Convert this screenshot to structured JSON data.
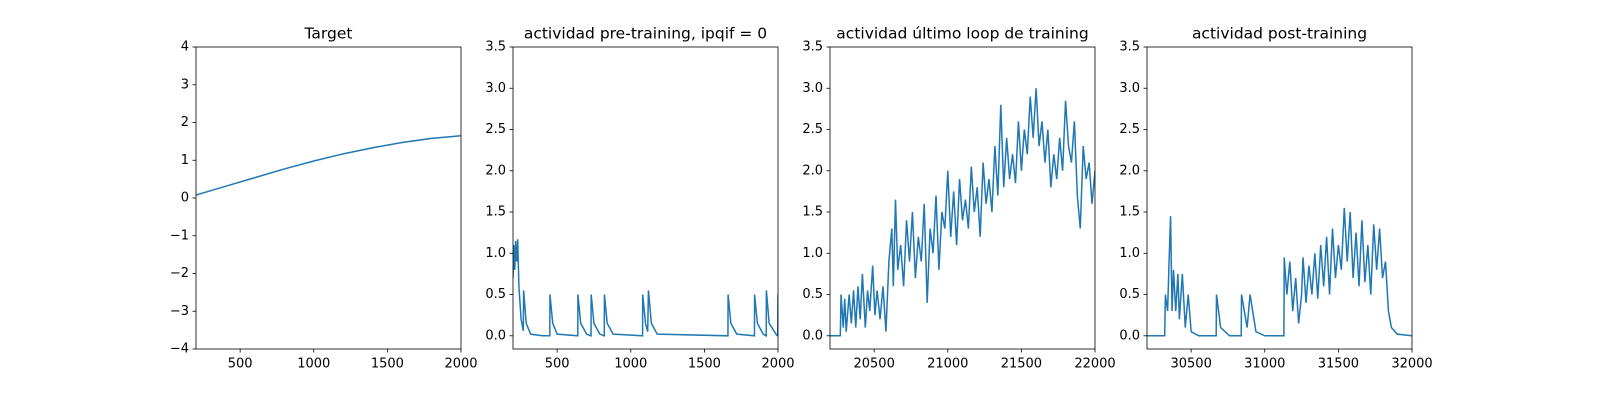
{
  "chart_data": [
    {
      "type": "line",
      "title": "Target",
      "color": "#1f77b4",
      "x": [
        200,
        400,
        600,
        800,
        1000,
        1200,
        1400,
        1600,
        1800,
        2000
      ],
      "values": [
        0.08,
        0.31,
        0.54,
        0.77,
        0.98,
        1.17,
        1.33,
        1.47,
        1.58,
        1.65
      ],
      "xlim": [
        200,
        2000
      ],
      "ylim": [
        -4,
        4
      ],
      "xticks": [
        500,
        1000,
        1500,
        2000
      ],
      "yticks": [
        {
          "value": -4,
          "label": "−4"
        },
        {
          "value": -3,
          "label": "−3"
        },
        {
          "value": -2,
          "label": "−2"
        },
        {
          "value": -1,
          "label": "−1"
        },
        0,
        1,
        2,
        3,
        4
      ]
    },
    {
      "type": "line",
      "title": "actividad pre-training, ipqif = 0",
      "color": "#1f77b4",
      "x": [
        200,
        205,
        212,
        218,
        225,
        232,
        240,
        255,
        270,
        272,
        290,
        320,
        400,
        450,
        451,
        470,
        500,
        640,
        641,
        660,
        700,
        730,
        731,
        750,
        790,
        820,
        821,
        840,
        880,
        1080,
        1081,
        1100,
        1115,
        1120,
        1140,
        1180,
        1660,
        1661,
        1680,
        1720,
        1840,
        1841,
        1860,
        1900,
        1920,
        1921,
        1940,
        1990,
        1998,
        2000
      ],
      "values": [
        0.7,
        1.1,
        0.8,
        1.15,
        0.9,
        1.17,
        0.6,
        0.2,
        0.06,
        0.55,
        0.15,
        0.02,
        0,
        0,
        0.5,
        0.15,
        0.02,
        0,
        0.5,
        0.15,
        0.02,
        0,
        0.5,
        0.15,
        0.02,
        0,
        0.5,
        0.15,
        0.02,
        0,
        0.5,
        0.15,
        0.05,
        0.55,
        0.15,
        0.02,
        0,
        0.5,
        0.15,
        0.02,
        0,
        0.5,
        0.15,
        0.02,
        0,
        0.55,
        0.15,
        0.01,
        0,
        0.5
      ],
      "xlim": [
        200,
        2000
      ],
      "ylim": [
        -0.16,
        3.5
      ],
      "xticks": [
        500,
        1000,
        1500,
        2000
      ],
      "yticks": [
        {
          "value": 0,
          "label": "0.0"
        },
        0.5,
        {
          "value": 1,
          "label": "1.0"
        },
        1.5,
        {
          "value": 2,
          "label": "2.0"
        },
        2.5,
        {
          "value": 3,
          "label": "3.0"
        },
        3.5
      ]
    },
    {
      "type": "line",
      "title": "actividad último loop de training",
      "color": "#1f77b4",
      "x": [
        20200,
        20270,
        20275,
        20290,
        20300,
        20310,
        20330,
        20345,
        20360,
        20375,
        20390,
        20405,
        20420,
        20440,
        20455,
        20470,
        20490,
        20505,
        20520,
        20540,
        20560,
        20580,
        20600,
        20620,
        20630,
        20645,
        20660,
        20680,
        20700,
        20720,
        20740,
        20760,
        20780,
        20800,
        20820,
        20840,
        20860,
        20880,
        20900,
        20920,
        20940,
        20960,
        20980,
        21000,
        21020,
        21040,
        21060,
        21080,
        21100,
        21120,
        21140,
        21160,
        21180,
        21200,
        21220,
        21240,
        21260,
        21280,
        21300,
        21320,
        21340,
        21360,
        21380,
        21400,
        21420,
        21440,
        21460,
        21480,
        21500,
        21520,
        21540,
        21560,
        21580,
        21600,
        21620,
        21640,
        21660,
        21680,
        21700,
        21720,
        21740,
        21760,
        21780,
        21800,
        21820,
        21840,
        21860,
        21880,
        21900,
        21920,
        21940,
        21960,
        21980,
        22000
      ],
      "values": [
        0,
        0,
        0.5,
        0.1,
        0.45,
        0.05,
        0.5,
        0.15,
        0.55,
        0.1,
        0.6,
        0.2,
        0.75,
        0.1,
        0.55,
        0.3,
        0.85,
        0.25,
        0.55,
        0.2,
        0.6,
        0.05,
        0.9,
        1.3,
        0.6,
        1.65,
        0.8,
        1.1,
        0.6,
        1.4,
        0.9,
        1.5,
        0.7,
        1.2,
        0.9,
        1.6,
        0.4,
        1.3,
        1.0,
        1.7,
        0.8,
        1.5,
        1.3,
        2.0,
        1.2,
        1.75,
        1.1,
        1.9,
        1.4,
        1.65,
        1.3,
        2.05,
        1.5,
        1.8,
        1.2,
        2.1,
        1.6,
        1.9,
        1.5,
        2.3,
        1.7,
        2.8,
        1.8,
        2.4,
        1.9,
        2.2,
        1.85,
        2.6,
        2.0,
        2.5,
        2.2,
        2.9,
        2.4,
        3.0,
        2.3,
        2.6,
        2.1,
        2.5,
        1.8,
        2.2,
        1.9,
        2.4,
        2.0,
        2.85,
        2.3,
        2.1,
        2.6,
        1.7,
        1.3,
        2.3,
        1.9,
        2.1,
        1.6,
        2.0
      ],
      "xlim": [
        20200,
        22000
      ],
      "ylim": [
        -0.16,
        3.5
      ],
      "xticks": [
        20500,
        21000,
        21500,
        22000
      ],
      "yticks": [
        {
          "value": 0,
          "label": "0.0"
        },
        0.5,
        {
          "value": 1,
          "label": "1.0"
        },
        1.5,
        {
          "value": 2,
          "label": "2.0"
        },
        2.5,
        {
          "value": 3,
          "label": "3.0"
        },
        3.5
      ]
    },
    {
      "type": "line",
      "title": "actividad post-training",
      "color": "#1f77b4",
      "x": [
        30200,
        30320,
        30325,
        30340,
        30350,
        30360,
        30370,
        30380,
        30395,
        30410,
        30420,
        30440,
        30460,
        30480,
        30500,
        30550,
        30670,
        30672,
        30700,
        30760,
        30840,
        30842,
        30880,
        30900,
        30940,
        31000,
        31130,
        31132,
        31150,
        31170,
        31190,
        31210,
        31230,
        31250,
        31260,
        31280,
        31300,
        31320,
        31340,
        31360,
        31380,
        31400,
        31420,
        31440,
        31460,
        31480,
        31500,
        31520,
        31540,
        31560,
        31580,
        31600,
        31620,
        31640,
        31660,
        31680,
        31700,
        31720,
        31740,
        31760,
        31780,
        31800,
        31820,
        31840,
        31860,
        31900,
        32000
      ],
      "values": [
        0,
        0,
        0.5,
        0.3,
        0.9,
        1.45,
        0.3,
        0.8,
        0.3,
        0.75,
        0.2,
        0.75,
        0.1,
        0.5,
        0.05,
        0,
        0,
        0.5,
        0.1,
        0,
        0,
        0.5,
        0.1,
        0.5,
        0.05,
        0,
        0,
        0.95,
        0.5,
        0.9,
        0.3,
        0.7,
        0.15,
        0.5,
        0.95,
        0.4,
        0.85,
        0.5,
        1.0,
        0.45,
        1.1,
        0.6,
        1.2,
        0.5,
        1.3,
        0.7,
        1.1,
        0.8,
        1.55,
        0.9,
        1.5,
        0.7,
        1.25,
        0.6,
        1.4,
        0.65,
        1.1,
        0.5,
        1.35,
        0.8,
        1.3,
        0.7,
        0.9,
        0.3,
        0.1,
        0.02,
        0
      ],
      "xlim": [
        30200,
        32000
      ],
      "ylim": [
        -0.16,
        3.5
      ],
      "xticks": [
        30500,
        31000,
        31500,
        32000
      ],
      "yticks": [
        {
          "value": 0,
          "label": "0.0"
        },
        0.5,
        {
          "value": 1,
          "label": "1.0"
        },
        1.5,
        {
          "value": 2,
          "label": "2.0"
        },
        2.5,
        {
          "value": 3,
          "label": "3.0"
        },
        3.5
      ]
    }
  ]
}
